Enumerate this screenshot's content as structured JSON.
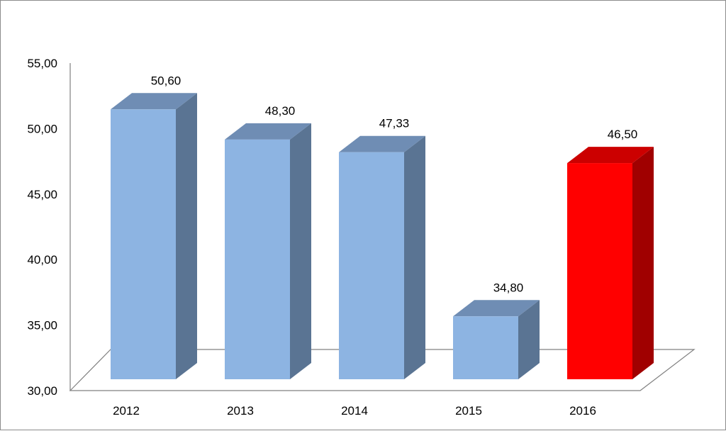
{
  "chart_data": {
    "type": "bar",
    "style": "3d-column",
    "categories": [
      "2012",
      "2013",
      "2014",
      "2015",
      "2016"
    ],
    "values": [
      50.6,
      48.3,
      47.33,
      34.8,
      46.5
    ],
    "value_labels": [
      "50,60",
      "48,30",
      "47,33",
      "34,80",
      "46,50"
    ],
    "ylim": [
      30,
      55
    ],
    "yticks": [
      30,
      35,
      40,
      45,
      50,
      55
    ],
    "ytick_labels": [
      "30,00",
      "35,00",
      "40,00",
      "45,00",
      "50,00",
      "55,00"
    ],
    "title": "",
    "xlabel": "",
    "ylabel": "",
    "grid": false,
    "legend": "none",
    "colors": {
      "bar_front": "#8db4e2",
      "bar_top": "#6f8db4",
      "bar_side": "#5a7493",
      "highlight_front": "#ff0000",
      "highlight_top": "#cc0000",
      "highlight_side": "#a00000",
      "highlight_index": 4,
      "axis": "#808080"
    }
  }
}
